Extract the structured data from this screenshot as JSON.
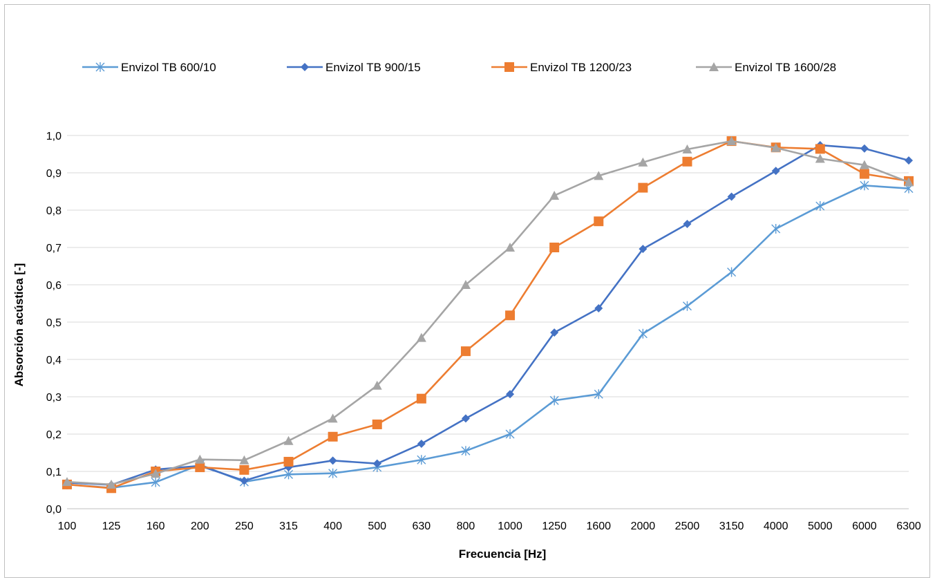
{
  "chart_data": {
    "type": "line",
    "title": "",
    "xlabel": "Frecuencia [Hz]",
    "ylabel": "Absorción acústica [-]",
    "categories": [
      "100",
      "125",
      "160",
      "200",
      "250",
      "315",
      "400",
      "500",
      "630",
      "800",
      "1000",
      "1250",
      "1600",
      "2000",
      "2500",
      "3150",
      "4000",
      "5000",
      "6000",
      "6300"
    ],
    "ylim": [
      0,
      1
    ],
    "yticks": [
      "0,0",
      "0,1",
      "0,2",
      "0,3",
      "0,4",
      "0,5",
      "0,6",
      "0,7",
      "0,8",
      "0,9",
      "1,0"
    ],
    "grid": "horizontal",
    "legend_position": "top",
    "series": [
      {
        "name": "Envizol TB 600/10",
        "color": "#5b9bd5",
        "marker": "star",
        "values": [
          0.065,
          0.056,
          0.071,
          0.118,
          0.072,
          0.092,
          0.095,
          0.111,
          0.131,
          0.155,
          0.2,
          0.29,
          0.307,
          0.469,
          0.543,
          0.634,
          0.75,
          0.811,
          0.866,
          0.858
        ]
      },
      {
        "name": "Envizol TB 900/15",
        "color": "#4472c4",
        "marker": "diamond",
        "values": [
          0.07,
          0.064,
          0.105,
          0.115,
          0.075,
          0.111,
          0.129,
          0.121,
          0.174,
          0.242,
          0.307,
          0.472,
          0.537,
          0.696,
          0.763,
          0.836,
          0.905,
          0.974,
          0.965,
          0.933
        ]
      },
      {
        "name": "Envizol TB 1200/23",
        "color": "#ed7d31",
        "marker": "square",
        "values": [
          0.065,
          0.055,
          0.1,
          0.111,
          0.104,
          0.126,
          0.193,
          0.226,
          0.295,
          0.422,
          0.518,
          0.7,
          0.77,
          0.86,
          0.93,
          0.985,
          0.968,
          0.964,
          0.897,
          0.878
        ]
      },
      {
        "name": "Envizol TB 1600/28",
        "color": "#a5a5a5",
        "marker": "triangle",
        "values": [
          0.072,
          0.065,
          0.094,
          0.132,
          0.13,
          0.182,
          0.242,
          0.33,
          0.458,
          0.6,
          0.7,
          0.839,
          0.892,
          0.928,
          0.963,
          0.985,
          0.967,
          0.938,
          0.921,
          0.875
        ]
      }
    ]
  }
}
